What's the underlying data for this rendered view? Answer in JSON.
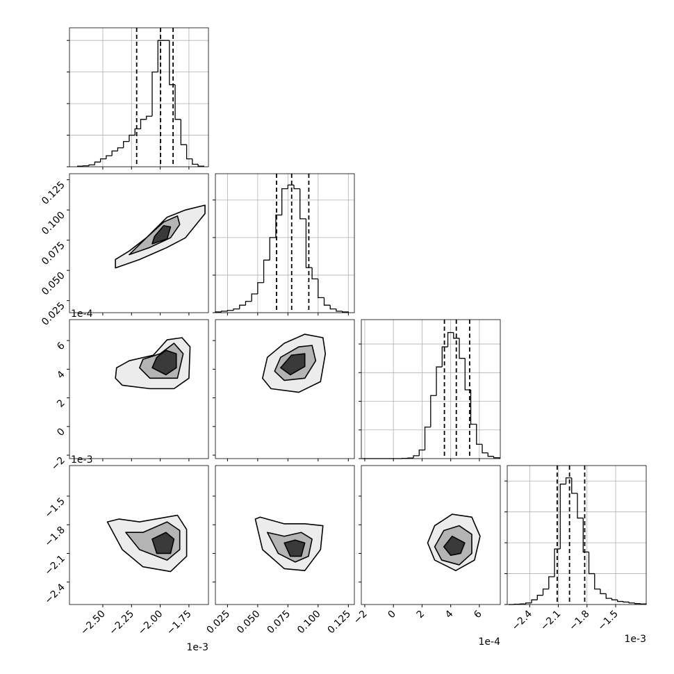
{
  "chart_data": {
    "type": "corner",
    "grid": true,
    "line_color": "#000000",
    "grid_color": "#b0b0b0",
    "contour_fills": [
      "#ececec",
      "#b4b4b4",
      "#3a3a3a"
    ],
    "parameters": [
      {
        "offset_label": "1e-3",
        "lim": [
          -2.79,
          -1.58
        ],
        "ticks": [
          {
            "value": -2.5,
            "label": "−2.50"
          },
          {
            "value": -2.25,
            "label": "−2.25"
          },
          {
            "value": -2.0,
            "label": "−2.00"
          },
          {
            "value": -1.75,
            "label": "−1.75"
          }
        ]
      },
      {
        "lim": [
          0.015,
          0.13
        ],
        "ticks": [
          0.025,
          {
            "value": 0.05,
            "label": "0.050"
          },
          0.075,
          {
            "value": 0.1,
            "label": "0.100"
          },
          0.125
        ]
      },
      {
        "offset_label": "1e-4",
        "lim": [
          -2.24,
          7.46
        ],
        "ticks": [
          {
            "value": -2,
            "label": "−2"
          },
          0,
          2,
          4,
          6
        ]
      },
      {
        "offset_label": "1e-3",
        "lim": [
          -2.635,
          -1.18
        ],
        "ticks": [
          {
            "value": -2.4,
            "label": "−2.4"
          },
          {
            "value": -2.1,
            "label": "−2.1"
          },
          {
            "value": -1.8,
            "label": "−1.8"
          },
          {
            "value": -1.5,
            "label": "−1.5"
          }
        ]
      }
    ],
    "histograms": [
      {
        "bins": [
          -2.72,
          -2.67,
          -2.62,
          -2.57,
          -2.52,
          -2.47,
          -2.42,
          -2.37,
          -2.32,
          -2.27,
          -2.22,
          -2.17,
          -2.12,
          -2.07,
          -2.02,
          -1.97,
          -1.92,
          -1.87,
          -1.82,
          -1.77,
          -1.72,
          -1.67,
          -1.62
        ],
        "values": [
          0.02,
          0.03,
          0.06,
          0.15,
          0.25,
          0.35,
          0.5,
          0.6,
          0.8,
          1.0,
          1.2,
          1.5,
          1.6,
          3.0,
          4.0,
          4.0,
          2.6,
          1.5,
          0.7,
          0.25,
          0.08,
          0.02
        ],
        "quantiles": [
          -2.205,
          -1.997,
          -1.888
        ],
        "ylim": [
          0,
          4.4
        ],
        "yticks": [
          0,
          1,
          2,
          3,
          4
        ]
      },
      {
        "bins": [
          0.015,
          0.02,
          0.025,
          0.03,
          0.035,
          0.04,
          0.045,
          0.05,
          0.055,
          0.06,
          0.065,
          0.07,
          0.075,
          0.08,
          0.085,
          0.09,
          0.095,
          0.1,
          0.105,
          0.11,
          0.115,
          0.12,
          0.125
        ],
        "values": [
          0.02,
          0.04,
          0.06,
          0.1,
          0.2,
          0.3,
          0.5,
          0.8,
          1.4,
          2.0,
          2.6,
          3.3,
          3.4,
          3.3,
          2.5,
          1.2,
          0.9,
          0.4,
          0.2,
          0.1,
          0.04,
          0.02
        ],
        "quantiles": [
          0.0656,
          0.0781,
          0.0923
        ],
        "ylim": [
          0,
          3.7
        ],
        "yticks": [
          0,
          1,
          2,
          3
        ]
      },
      {
        "bins": [
          -2.2,
          -1.8,
          -1.4,
          -1.0,
          -0.6,
          -0.2,
          0.2,
          0.6,
          1.0,
          1.4,
          1.8,
          2.2,
          2.6,
          3.0,
          3.4,
          3.8,
          4.2,
          4.6,
          5.0,
          5.4,
          5.8,
          6.2,
          6.6,
          7.0,
          7.4
        ],
        "values": [
          0,
          0,
          0,
          0,
          0,
          0,
          0,
          0.01,
          0.02,
          0.1,
          0.3,
          1.1,
          2.2,
          3.2,
          3.9,
          4.4,
          4.2,
          3.5,
          2.4,
          1.2,
          0.5,
          0.2,
          0.08,
          0.03
        ],
        "quantiles": [
          3.56,
          4.39,
          5.32
        ],
        "ylim": [
          0,
          4.85
        ],
        "yticks": [
          0,
          1,
          2,
          3,
          4
        ]
      },
      {
        "bins": [
          -2.62,
          -2.56,
          -2.5,
          -2.44,
          -2.38,
          -2.32,
          -2.26,
          -2.2,
          -2.14,
          -2.08,
          -2.02,
          -1.96,
          -1.9,
          -1.84,
          -1.78,
          -1.72,
          -1.66,
          -1.6,
          -1.54,
          -1.48,
          -1.42,
          -1.36,
          -1.3,
          -1.24,
          -1.18
        ],
        "values": [
          0,
          0.01,
          0.02,
          0.05,
          0.15,
          0.3,
          0.5,
          0.9,
          1.8,
          3.9,
          4.1,
          3.6,
          2.8,
          1.7,
          1.0,
          0.5,
          0.35,
          0.2,
          0.15,
          0.1,
          0.08,
          0.05,
          0.03,
          0.02
        ],
        "quantiles": [
          -2.112,
          -1.983,
          -1.824
        ],
        "ylim": [
          0,
          4.5
        ],
        "yticks": [
          0,
          1,
          2,
          3,
          4
        ]
      }
    ],
    "contours": [
      {
        "levels": [
          [
            [
              -2.39,
              0.052
            ],
            [
              -2.18,
              0.059
            ],
            [
              -1.94,
              0.069
            ],
            [
              -1.78,
              0.077
            ],
            [
              -1.61,
              0.097
            ],
            [
              -1.61,
              0.104
            ],
            [
              -1.78,
              0.1
            ],
            [
              -1.94,
              0.094
            ],
            [
              -2.12,
              0.077
            ],
            [
              -2.27,
              0.066
            ],
            [
              -2.39,
              0.059
            ]
          ],
          [
            [
              -2.27,
              0.063
            ],
            [
              -2.09,
              0.069
            ],
            [
              -1.91,
              0.077
            ],
            [
              -1.83,
              0.088
            ],
            [
              -1.85,
              0.095
            ],
            [
              -1.97,
              0.09
            ],
            [
              -2.12,
              0.077
            ]
          ],
          [
            [
              -2.07,
              0.072
            ],
            [
              -1.94,
              0.076
            ],
            [
              -1.91,
              0.086
            ],
            [
              -1.97,
              0.087
            ],
            [
              -2.05,
              0.078
            ]
          ]
        ]
      },
      {
        "levels": [
          [
            [
              -2.39,
              3.37
            ],
            [
              -2.33,
              2.88
            ],
            [
              -2.09,
              2.64
            ],
            [
              -1.88,
              2.64
            ],
            [
              -1.75,
              3.37
            ],
            [
              -1.74,
              5.56
            ],
            [
              -1.81,
              6.2
            ],
            [
              -1.94,
              6.05
            ],
            [
              -2.06,
              4.98
            ],
            [
              -2.27,
              4.59
            ],
            [
              -2.38,
              4.1
            ]
          ],
          [
            [
              -2.18,
              4.1
            ],
            [
              -2.09,
              3.37
            ],
            [
              -1.85,
              3.37
            ],
            [
              -1.8,
              5.08
            ],
            [
              -1.88,
              5.81
            ],
            [
              -2.0,
              5.08
            ],
            [
              -2.15,
              4.69
            ]
          ],
          [
            [
              -2.07,
              4.1
            ],
            [
              -1.95,
              3.61
            ],
            [
              -1.86,
              4.1
            ],
            [
              -1.86,
              5.08
            ],
            [
              -1.95,
              5.32
            ],
            [
              -2.03,
              4.83
            ]
          ]
        ]
      },
      {
        "levels": [
          [
            [
              0.054,
              3.37
            ],
            [
              0.061,
              2.64
            ],
            [
              0.084,
              2.39
            ],
            [
              0.102,
              3.13
            ],
            [
              0.106,
              5.08
            ],
            [
              0.104,
              6.2
            ],
            [
              0.089,
              6.44
            ],
            [
              0.072,
              5.81
            ],
            [
              0.058,
              4.83
            ]
          ],
          [
            [
              0.064,
              3.86
            ],
            [
              0.072,
              3.22
            ],
            [
              0.089,
              3.37
            ],
            [
              0.098,
              4.59
            ],
            [
              0.095,
              5.66
            ],
            [
              0.084,
              5.56
            ],
            [
              0.069,
              4.83
            ]
          ],
          [
            [
              0.069,
              4.1
            ],
            [
              0.077,
              3.61
            ],
            [
              0.089,
              4.19
            ],
            [
              0.089,
              5.08
            ],
            [
              0.078,
              4.98
            ]
          ]
        ]
      },
      {
        "levels": [
          [
            [
              -2.46,
              -1.77
            ],
            [
              -2.33,
              -2.06
            ],
            [
              -2.15,
              -2.24
            ],
            [
              -1.91,
              -2.29
            ],
            [
              -1.77,
              -2.13
            ],
            [
              -1.77,
              -1.85
            ],
            [
              -1.85,
              -1.7
            ],
            [
              -2.18,
              -1.77
            ],
            [
              -2.36,
              -1.74
            ]
          ],
          [
            [
              -2.3,
              -1.88
            ],
            [
              -2.18,
              -2.06
            ],
            [
              -1.94,
              -2.17
            ],
            [
              -1.83,
              -2.06
            ],
            [
              -1.83,
              -1.86
            ],
            [
              -1.94,
              -1.77
            ],
            [
              -2.15,
              -1.88
            ]
          ],
          [
            [
              -2.07,
              -1.95
            ],
            [
              -2.03,
              -2.1
            ],
            [
              -1.91,
              -2.1
            ],
            [
              -1.88,
              -1.95
            ],
            [
              -1.95,
              -1.88
            ]
          ]
        ]
      },
      {
        "levels": [
          [
            [
              0.048,
              -1.74
            ],
            [
              0.054,
              -2.06
            ],
            [
              0.072,
              -2.26
            ],
            [
              0.089,
              -2.28
            ],
            [
              0.102,
              -2.06
            ],
            [
              0.104,
              -1.81
            ],
            [
              0.089,
              -1.79
            ],
            [
              0.072,
              -1.79
            ],
            [
              0.052,
              -1.72
            ]
          ],
          [
            [
              0.058,
              -1.88
            ],
            [
              0.067,
              -2.1
            ],
            [
              0.081,
              -2.19
            ],
            [
              0.092,
              -2.13
            ],
            [
              0.095,
              -1.95
            ],
            [
              0.086,
              -1.88
            ],
            [
              0.072,
              -1.92
            ]
          ],
          [
            [
              0.072,
              -1.99
            ],
            [
              0.077,
              -2.13
            ],
            [
              0.086,
              -2.13
            ],
            [
              0.089,
              -1.99
            ],
            [
              0.081,
              -1.96
            ]
          ]
        ]
      },
      {
        "levels": [
          [
            [
              2.39,
              -1.99
            ],
            [
              2.88,
              -2.17
            ],
            [
              4.35,
              -2.28
            ],
            [
              5.66,
              -2.17
            ],
            [
              6.05,
              -1.92
            ],
            [
              5.47,
              -1.72
            ],
            [
              4.1,
              -1.69
            ],
            [
              2.88,
              -1.81
            ]
          ],
          [
            [
              2.88,
              -2.03
            ],
            [
              3.37,
              -2.17
            ],
            [
              4.59,
              -2.22
            ],
            [
              5.47,
              -2.1
            ],
            [
              5.47,
              -1.9
            ],
            [
              4.59,
              -1.81
            ],
            [
              3.52,
              -1.86
            ]
          ],
          [
            [
              3.52,
              -2.03
            ],
            [
              4.0,
              -2.12
            ],
            [
              4.69,
              -2.1
            ],
            [
              4.98,
              -1.99
            ],
            [
              4.1,
              -1.92
            ]
          ]
        ]
      }
    ]
  }
}
